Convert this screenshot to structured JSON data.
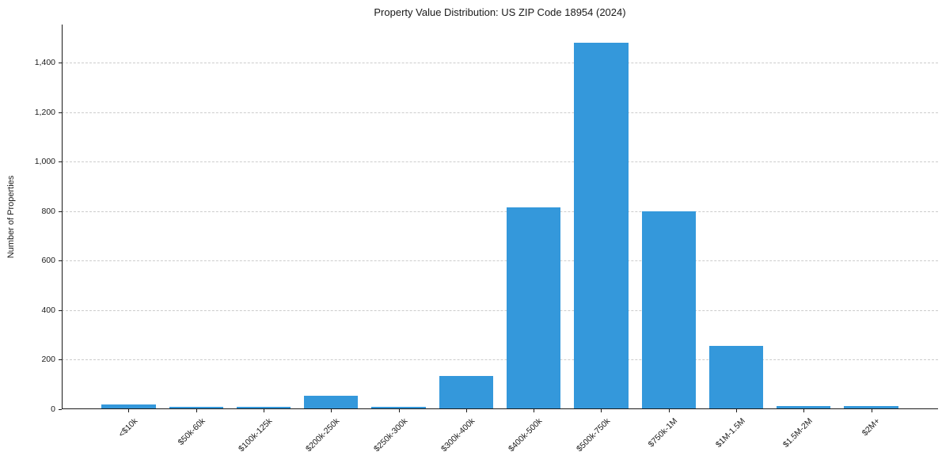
{
  "chart_data": {
    "type": "bar",
    "title": "Property Value Distribution: US ZIP Code 18954 (2024)",
    "xlabel": "",
    "ylabel": "Number of Properties",
    "categories": [
      "<$10k",
      "$50k-60k",
      "$100k-125k",
      "$200k-250k",
      "$250k-300k",
      "$300k-400k",
      "$400k-500k",
      "$500k-750k",
      "$750k-1M",
      "$1M-1.5M",
      "$1.5M-2M",
      "$2M+"
    ],
    "values": [
      20,
      8,
      9,
      55,
      10,
      135,
      815,
      1480,
      800,
      255,
      12,
      12
    ],
    "ylim": [
      0,
      1554
    ],
    "yticks": [
      0,
      200,
      400,
      600,
      800,
      1000,
      1200,
      1400
    ],
    "bar_color": "#3498db",
    "grid": "horizontal-dashed",
    "gridline_color": "#cccccc",
    "axis_color": "#1a1a1a",
    "background": "#ffffff",
    "legend": "none",
    "xtick_rotation": 45
  }
}
